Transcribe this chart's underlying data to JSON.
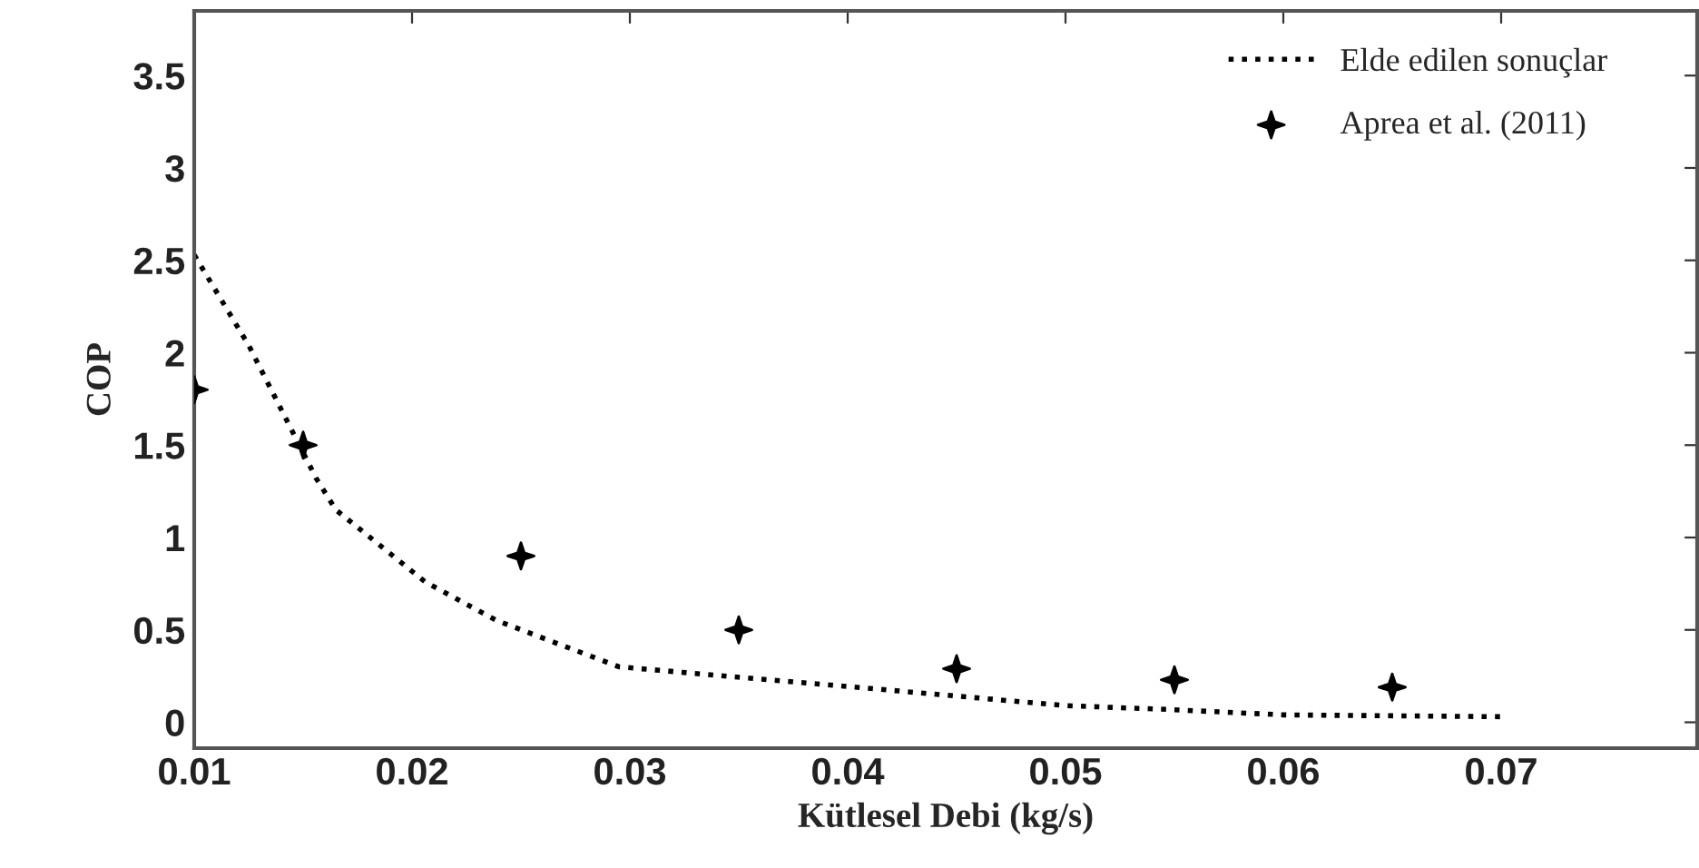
{
  "chart_data": {
    "type": "line",
    "xlabel": "Kütlesel Debi (kg/s)",
    "ylabel": "COP",
    "xlim": [
      0.01,
      0.079
    ],
    "ylim": [
      -0.14,
      3.85
    ],
    "xticks": [
      0.01,
      0.02,
      0.03,
      0.04,
      0.05,
      0.06,
      0.07
    ],
    "yticks": [
      0,
      0.5,
      1,
      1.5,
      2,
      2.5,
      3,
      3.5
    ],
    "grid": false,
    "legend": "top right",
    "series": [
      {
        "name": "Elde edilen sonuçlar",
        "line_style": "dotted",
        "color": "#000000",
        "x": [
          0.01,
          0.0125,
          0.0156,
          0.0165,
          0.0206,
          0.0239,
          0.0295,
          0.0354,
          0.0394,
          0.05,
          0.0546,
          0.06,
          0.07
        ],
        "values": [
          2.53,
          2.04,
          1.32,
          1.15,
          0.76,
          0.55,
          0.3,
          0.24,
          0.2,
          0.09,
          0.07,
          0.04,
          0.03
        ]
      },
      {
        "name": "Aprea et al. (2011)",
        "type": "scatter",
        "marker": "star",
        "color": "#000000",
        "x": [
          0.01,
          0.015,
          0.025,
          0.035,
          0.045,
          0.055,
          0.065
        ],
        "values": [
          1.8,
          1.5,
          0.9,
          0.5,
          0.29,
          0.23,
          0.19
        ]
      }
    ]
  }
}
